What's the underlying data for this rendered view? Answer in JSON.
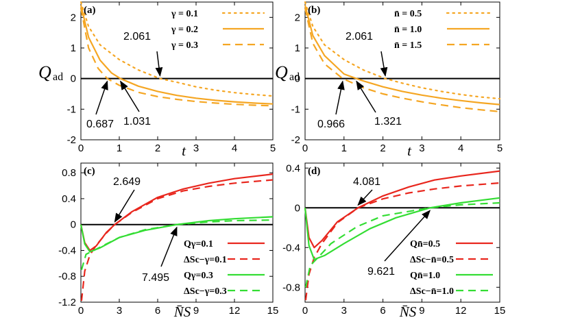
{
  "colors": {
    "orange": "#f5a623",
    "red": "#e8261d",
    "green": "#33dd33",
    "axis": "#000000"
  },
  "chart_data": [
    {
      "panel": "a",
      "panel_label": "(a)",
      "type": "line",
      "ylabel_main": "Q",
      "ylabel_sub": "ad",
      "xlabel": "t",
      "xlim": [
        0,
        5
      ],
      "ylim": [
        -2,
        2.5
      ],
      "xticks": [
        0,
        1,
        2,
        3,
        4,
        5
      ],
      "yticks": [
        -2,
        -1,
        0,
        1,
        2
      ],
      "series": [
        {
          "name": "γ = 0.1",
          "style": "dotted",
          "color": "orange",
          "points": [
            [
              0,
              2.5
            ],
            [
              0.2,
              1.7
            ],
            [
              0.5,
              1.1
            ],
            [
              1,
              0.62
            ],
            [
              1.5,
              0.28
            ],
            [
              2.061,
              0
            ],
            [
              2.5,
              -0.12
            ],
            [
              3,
              -0.27
            ],
            [
              3.5,
              -0.38
            ],
            [
              4,
              -0.46
            ],
            [
              4.5,
              -0.52
            ],
            [
              5,
              -0.57
            ]
          ]
        },
        {
          "name": "γ = 0.2",
          "style": "solid",
          "color": "orange",
          "points": [
            [
              0,
              2.4
            ],
            [
              0.2,
              1.35
            ],
            [
              0.5,
              0.6
            ],
            [
              0.8,
              0.18
            ],
            [
              1.031,
              0
            ],
            [
              1.5,
              -0.25
            ],
            [
              2,
              -0.42
            ],
            [
              2.5,
              -0.55
            ],
            [
              3,
              -0.64
            ],
            [
              3.5,
              -0.71
            ],
            [
              4,
              -0.76
            ],
            [
              4.5,
              -0.8
            ],
            [
              5,
              -0.83
            ]
          ]
        },
        {
          "name": "γ = 0.3",
          "style": "dashed",
          "color": "orange",
          "points": [
            [
              0,
              2.3
            ],
            [
              0.2,
              1.0
            ],
            [
              0.45,
              0.33
            ],
            [
              0.687,
              0
            ],
            [
              1,
              -0.22
            ],
            [
              1.5,
              -0.45
            ],
            [
              2,
              -0.59
            ],
            [
              2.5,
              -0.68
            ],
            [
              3,
              -0.75
            ],
            [
              3.5,
              -0.8
            ],
            [
              4,
              -0.84
            ],
            [
              4.5,
              -0.87
            ],
            [
              5,
              -0.89
            ]
          ]
        }
      ],
      "legend": [
        "γ = 0.1",
        "γ = 0.2",
        "γ = 0.3"
      ],
      "annotations": [
        {
          "text": "2.061",
          "x": 2.061,
          "y": 0
        },
        {
          "text": "0.687",
          "x": 0.687,
          "y": 0
        },
        {
          "text": "1.031",
          "x": 1.031,
          "y": 0
        }
      ]
    },
    {
      "panel": "b",
      "panel_label": "(b)",
      "type": "line",
      "ylabel_main": "Q",
      "ylabel_sub": "ad",
      "xlabel": "t",
      "xlim": [
        0,
        5
      ],
      "ylim": [
        -2,
        2.5
      ],
      "xticks": [
        0,
        1,
        2,
        3,
        4,
        5
      ],
      "yticks": [
        -2,
        -1,
        0,
        1,
        2
      ],
      "series": [
        {
          "name": "n̄ = 0.5",
          "style": "dotted",
          "color": "orange",
          "points": [
            [
              0,
              2.5
            ],
            [
              0.2,
              1.7
            ],
            [
              0.5,
              1.1
            ],
            [
              1,
              0.62
            ],
            [
              1.5,
              0.28
            ],
            [
              2.061,
              0
            ],
            [
              2.5,
              -0.15
            ],
            [
              3,
              -0.3
            ],
            [
              3.5,
              -0.42
            ],
            [
              4,
              -0.52
            ],
            [
              4.5,
              -0.6
            ],
            [
              5,
              -0.66
            ]
          ]
        },
        {
          "name": "n̄ = 1.0",
          "style": "solid",
          "color": "orange",
          "points": [
            [
              0,
              2.4
            ],
            [
              0.2,
              1.4
            ],
            [
              0.5,
              0.75
            ],
            [
              1,
              0.15
            ],
            [
              1.321,
              0
            ],
            [
              1.5,
              -0.08
            ],
            [
              2,
              -0.27
            ],
            [
              2.5,
              -0.42
            ],
            [
              3,
              -0.54
            ],
            [
              3.5,
              -0.64
            ],
            [
              4,
              -0.72
            ],
            [
              4.5,
              -0.79
            ],
            [
              5,
              -0.85
            ]
          ]
        },
        {
          "name": "n̄ = 1.5",
          "style": "dashed",
          "color": "orange",
          "points": [
            [
              0,
              2.3
            ],
            [
              0.2,
              1.15
            ],
            [
              0.5,
              0.48
            ],
            [
              0.966,
              0
            ],
            [
              1.5,
              -0.3
            ],
            [
              2,
              -0.5
            ],
            [
              2.5,
              -0.64
            ],
            [
              3,
              -0.76
            ],
            [
              3.5,
              -0.86
            ],
            [
              4,
              -0.95
            ],
            [
              4.5,
              -1.02
            ],
            [
              5,
              -1.08
            ]
          ]
        }
      ],
      "legend": [
        "n̄ = 0.5",
        "n̄ = 1.0",
        "n̄ = 1.5"
      ],
      "annotations": [
        {
          "text": "2.061",
          "x": 2.061,
          "y": 0
        },
        {
          "text": "0.966",
          "x": 0.966,
          "y": 0
        },
        {
          "text": "1.321",
          "x": 1.321,
          "y": 0
        }
      ]
    },
    {
      "panel": "c",
      "panel_label": "(c)",
      "type": "line",
      "xlabel": "N̄S",
      "xlim": [
        0,
        15
      ],
      "ylim": [
        -1.2,
        0.95
      ],
      "xticks": [
        0,
        3,
        6,
        9,
        12,
        15
      ],
      "yticks": [
        -1.2,
        -0.8,
        -0.4,
        0,
        0.4,
        0.8
      ],
      "ytick_labels": [
        "-1.2",
        "-0.8",
        "-0.4",
        "0",
        "0.4",
        "0.8"
      ],
      "series": [
        {
          "name": "Q γ=0.1",
          "style": "solid",
          "color": "red",
          "points": [
            [
              0,
              0
            ],
            [
              0.3,
              -0.28
            ],
            [
              0.7,
              -0.4
            ],
            [
              1.2,
              -0.33
            ],
            [
              2,
              -0.12
            ],
            [
              2.649,
              0
            ],
            [
              4,
              0.2
            ],
            [
              6,
              0.42
            ],
            [
              8,
              0.55
            ],
            [
              10,
              0.64
            ],
            [
              12,
              0.71
            ],
            [
              15,
              0.78
            ]
          ]
        },
        {
          "name": "ΔS c−γ=0.1",
          "style": "dashed",
          "color": "red",
          "points": [
            [
              0.05,
              -1.18
            ],
            [
              0.3,
              -0.72
            ],
            [
              0.7,
              -0.47
            ],
            [
              1.2,
              -0.32
            ],
            [
              2,
              -0.13
            ],
            [
              2.649,
              0
            ],
            [
              4,
              0.19
            ],
            [
              6,
              0.4
            ],
            [
              8,
              0.52
            ],
            [
              10,
              0.59
            ],
            [
              12,
              0.64
            ],
            [
              15,
              0.69
            ]
          ]
        },
        {
          "name": "Q γ=0.3",
          "style": "solid",
          "color": "green",
          "points": [
            [
              0,
              0
            ],
            [
              0.3,
              -0.3
            ],
            [
              0.7,
              -0.42
            ],
            [
              1.5,
              -0.36
            ],
            [
              3,
              -0.2
            ],
            [
              5,
              -0.09
            ],
            [
              7.495,
              0
            ],
            [
              10,
              0.06
            ],
            [
              12,
              0.09
            ],
            [
              15,
              0.12
            ]
          ]
        },
        {
          "name": "ΔS c−γ=0.3",
          "style": "dashed",
          "color": "green",
          "points": [
            [
              0.05,
              -0.7
            ],
            [
              0.4,
              -0.46
            ],
            [
              1,
              -0.4
            ],
            [
              2,
              -0.3
            ],
            [
              3,
              -0.2
            ],
            [
              5,
              -0.08
            ],
            [
              7.495,
              0
            ],
            [
              10,
              0.04
            ],
            [
              12,
              0.06
            ],
            [
              15,
              0.07
            ]
          ]
        }
      ],
      "legend": [
        "Qγ=0.1",
        "ΔSc−γ=0.1",
        "Qγ=0.3",
        "ΔSc−γ=0.3"
      ],
      "annotations": [
        {
          "text": "2.649",
          "x": 2.649,
          "y": 0
        },
        {
          "text": "7.495",
          "x": 7.495,
          "y": 0
        }
      ]
    },
    {
      "panel": "d",
      "panel_label": "(d)",
      "type": "line",
      "xlabel": "N̄S",
      "xlim": [
        0,
        15
      ],
      "ylim": [
        -0.95,
        0.45
      ],
      "xticks": [
        0,
        3,
        6,
        9,
        12,
        15
      ],
      "yticks": [
        -0.8,
        -0.4,
        0,
        0.4
      ],
      "ytick_labels": [
        "-0.8",
        "-0.4",
        "0",
        "0.4"
      ],
      "series": [
        {
          "name": "Q n̄=0.5",
          "style": "solid",
          "color": "red",
          "points": [
            [
              0,
              0
            ],
            [
              0.3,
              -0.3
            ],
            [
              0.7,
              -0.4
            ],
            [
              1.3,
              -0.33
            ],
            [
              2.5,
              -0.14
            ],
            [
              4.081,
              0
            ],
            [
              6,
              0.12
            ],
            [
              8,
              0.21
            ],
            [
              10,
              0.28
            ],
            [
              12,
              0.32
            ],
            [
              15,
              0.37
            ]
          ]
        },
        {
          "name": "ΔS c−n̄=0.5",
          "style": "dashed",
          "color": "red",
          "points": [
            [
              0.05,
              -0.93
            ],
            [
              0.3,
              -0.67
            ],
            [
              0.7,
              -0.5
            ],
            [
              1.3,
              -0.36
            ],
            [
              2.5,
              -0.15
            ],
            [
              4.081,
              0
            ],
            [
              6,
              0.09
            ],
            [
              8,
              0.15
            ],
            [
              10,
              0.19
            ],
            [
              12,
              0.22
            ],
            [
              15,
              0.25
            ]
          ]
        },
        {
          "name": "Q n̄=1.0",
          "style": "solid",
          "color": "green",
          "points": [
            [
              0,
              0
            ],
            [
              0.3,
              -0.38
            ],
            [
              0.7,
              -0.52
            ],
            [
              1.5,
              -0.48
            ],
            [
              3,
              -0.36
            ],
            [
              5,
              -0.21
            ],
            [
              7,
              -0.1
            ],
            [
              9.621,
              0
            ],
            [
              12,
              0.05
            ],
            [
              15,
              0.1
            ]
          ]
        },
        {
          "name": "ΔS c−n̄=1.0",
          "style": "dashed",
          "color": "green",
          "points": [
            [
              0.05,
              -0.8
            ],
            [
              0.4,
              -0.58
            ],
            [
              1,
              -0.5
            ],
            [
              2,
              -0.36
            ],
            [
              4,
              -0.19
            ],
            [
              6,
              -0.08
            ],
            [
              9.621,
              0
            ],
            [
              12,
              0.03
            ],
            [
              15,
              0.05
            ]
          ]
        }
      ],
      "legend": [
        "Qn̄=0.5",
        "ΔSc−n̄=0.5",
        "Qn̄=1.0",
        "ΔSc−n̄=1.0"
      ],
      "annotations": [
        {
          "text": "4.081",
          "x": 4.081,
          "y": 0
        },
        {
          "text": "9.621",
          "x": 9.621,
          "y": 0
        }
      ]
    }
  ]
}
